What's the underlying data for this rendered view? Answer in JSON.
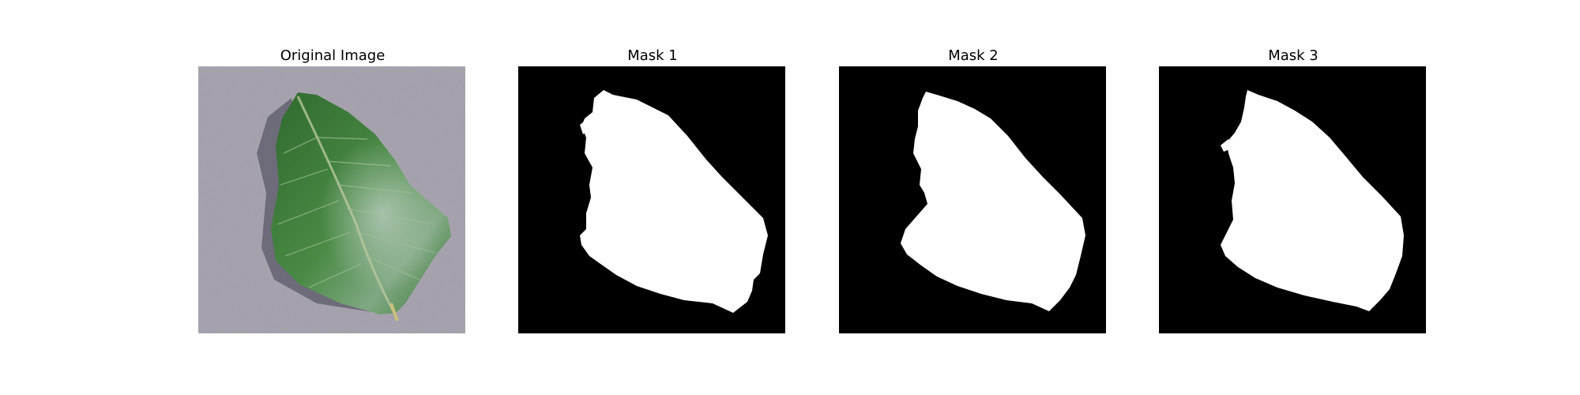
{
  "figure": {
    "panels": [
      {
        "title": "Original Image"
      },
      {
        "title": "Mask 1"
      },
      {
        "title": "Mask 2"
      },
      {
        "title": "Mask 3"
      }
    ]
  },
  "colors": {
    "background": "#ffffff",
    "mask_background": "#000000",
    "mask_foreground": "#ffffff",
    "leaf_green": "#3f7a3a",
    "ground_gray": "#a7a3ad"
  }
}
